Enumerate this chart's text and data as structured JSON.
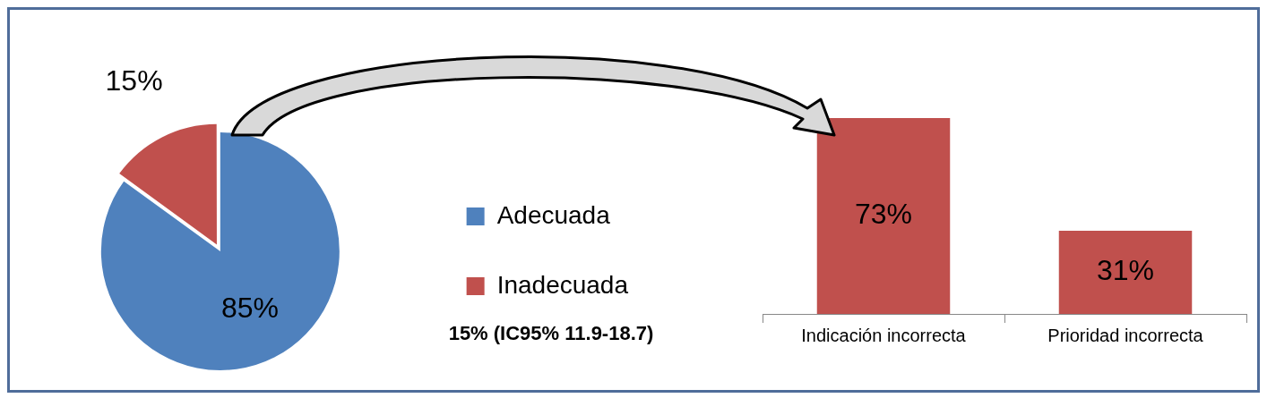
{
  "chart_data": [
    {
      "type": "pie",
      "categories": [
        "Adecuada",
        "Inadecuada"
      ],
      "values": [
        85,
        15
      ],
      "colors": [
        "#4f81bd",
        "#c0504d"
      ],
      "value_labels": [
        "85%",
        "15%"
      ],
      "legend": "right",
      "annotations": [
        "15% (IC95% 11.9-18.7)"
      ]
    },
    {
      "type": "bar",
      "categories": [
        "Indicación incorrecta",
        "Prioridad incorrecta"
      ],
      "values": [
        73,
        31
      ],
      "color": "#c0504d",
      "value_labels": [
        "73%",
        "31%"
      ],
      "tick_labels": "x"
    }
  ]
}
